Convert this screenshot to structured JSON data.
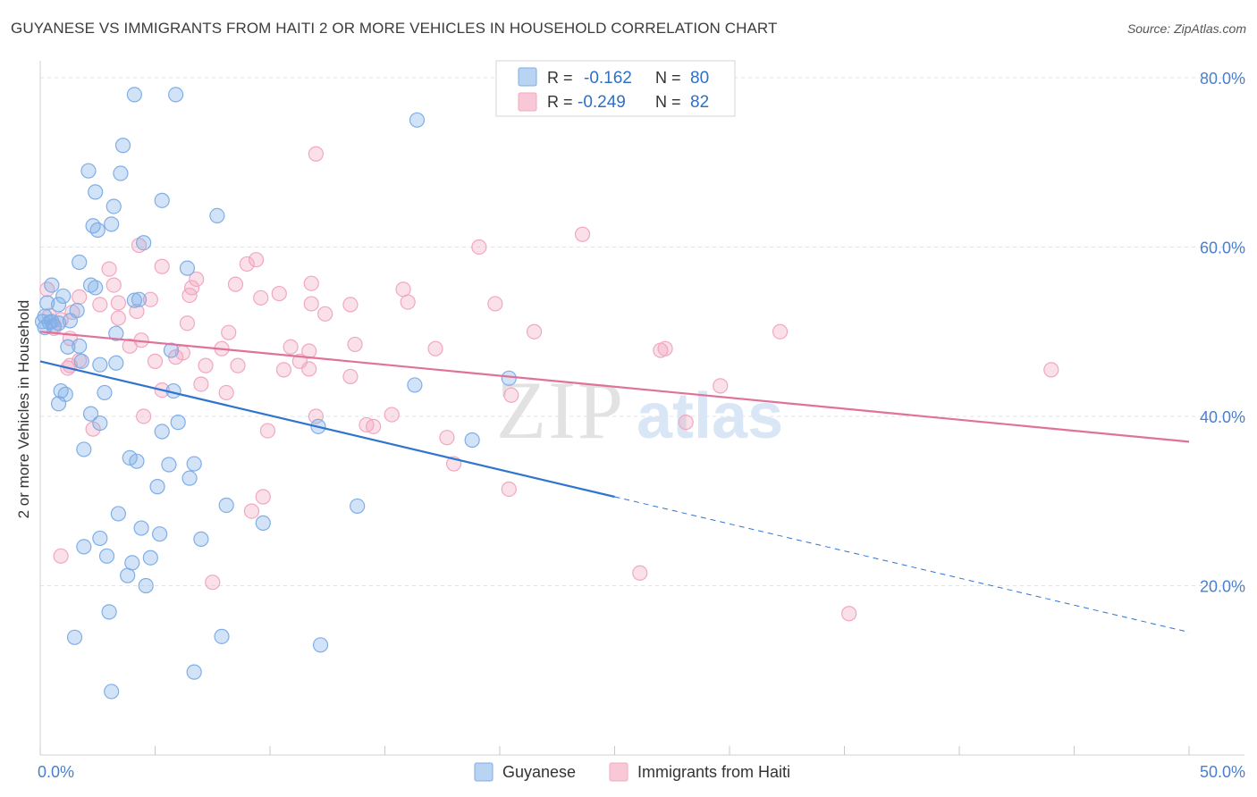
{
  "header": {
    "title": "GUYANESE VS IMMIGRANTS FROM HAITI 2 OR MORE VEHICLES IN HOUSEHOLD CORRELATION CHART",
    "source": "Source: ZipAtlas.com"
  },
  "watermark": {
    "zip": "ZIP",
    "atlas": "atlas"
  },
  "legend_top": [
    {
      "r_label": "R =",
      "r_value": "-0.162",
      "n_label": "N =",
      "n_value": "80"
    },
    {
      "r_label": "R =",
      "r_value": "-0.249",
      "n_label": "N =",
      "n_value": "82"
    }
  ],
  "chart_data": {
    "type": "scatter",
    "title": "GUYANESE VS IMMIGRANTS FROM HAITI 2 OR MORE VEHICLES IN HOUSEHOLD CORRELATION CHART",
    "xlabel": "",
    "ylabel": "2 or more Vehicles in Household",
    "xlim": [
      0,
      50
    ],
    "ylim": [
      0,
      82
    ],
    "x_tick_labels": [
      "0.0%",
      "50.0%"
    ],
    "y_ticks": [
      20,
      40,
      60,
      80
    ],
    "y_tick_labels": [
      "20.0%",
      "40.0%",
      "60.0%",
      "80.0%"
    ],
    "grid": true,
    "legend_position": "bottom-center",
    "colors": {
      "guyanese": "#7eaee8",
      "guyanese_line": "#2f74d0",
      "haiti": "#f2a7c0",
      "haiti_line": "#e0719a",
      "tick_label": "#4a7fd0"
    },
    "series": [
      {
        "name": "Guyanese",
        "trend": {
          "x0": 0,
          "y0": 46.5,
          "x1": 25,
          "y1": 30.5,
          "x_dash_end": 50,
          "y_dash_end": 14.5
        },
        "points": [
          [
            4.1,
            78.0
          ],
          [
            5.9,
            78.0
          ],
          [
            16.4,
            75.0
          ],
          [
            3.6,
            72.0
          ],
          [
            2.1,
            69.0
          ],
          [
            3.5,
            68.7
          ],
          [
            2.4,
            66.5
          ],
          [
            5.3,
            65.5
          ],
          [
            3.2,
            64.8
          ],
          [
            7.7,
            63.7
          ],
          [
            2.3,
            62.5
          ],
          [
            3.1,
            62.7
          ],
          [
            2.5,
            62.0
          ],
          [
            4.5,
            60.5
          ],
          [
            1.7,
            58.2
          ],
          [
            6.4,
            57.5
          ],
          [
            0.5,
            55.5
          ],
          [
            2.2,
            55.5
          ],
          [
            2.4,
            55.2
          ],
          [
            1.0,
            54.2
          ],
          [
            4.3,
            53.8
          ],
          [
            4.1,
            53.7
          ],
          [
            0.8,
            53.2
          ],
          [
            0.3,
            53.4
          ],
          [
            1.6,
            52.5
          ],
          [
            0.5,
            51.2
          ],
          [
            0.8,
            51.0
          ],
          [
            0.1,
            51.2
          ],
          [
            0.2,
            50.5
          ],
          [
            3.3,
            49.8
          ],
          [
            1.7,
            48.3
          ],
          [
            1.2,
            48.2
          ],
          [
            5.7,
            47.8
          ],
          [
            1.8,
            46.5
          ],
          [
            2.6,
            46.1
          ],
          [
            3.3,
            46.3
          ],
          [
            20.4,
            44.5
          ],
          [
            16.3,
            43.7
          ],
          [
            0.9,
            43.0
          ],
          [
            2.8,
            42.8
          ],
          [
            1.1,
            42.6
          ],
          [
            5.8,
            43.0
          ],
          [
            0.8,
            41.5
          ],
          [
            2.2,
            40.3
          ],
          [
            6.0,
            39.3
          ],
          [
            2.6,
            39.2
          ],
          [
            12.1,
            38.8
          ],
          [
            5.3,
            38.2
          ],
          [
            18.8,
            37.2
          ],
          [
            1.9,
            36.1
          ],
          [
            3.9,
            35.1
          ],
          [
            4.2,
            34.7
          ],
          [
            6.7,
            34.4
          ],
          [
            5.6,
            34.3
          ],
          [
            6.5,
            32.7
          ],
          [
            5.1,
            31.7
          ],
          [
            8.1,
            29.5
          ],
          [
            13.8,
            29.4
          ],
          [
            3.4,
            28.5
          ],
          [
            9.7,
            27.4
          ],
          [
            4.4,
            26.8
          ],
          [
            5.2,
            26.1
          ],
          [
            2.6,
            25.6
          ],
          [
            7.0,
            25.5
          ],
          [
            1.9,
            24.6
          ],
          [
            2.9,
            23.5
          ],
          [
            4.8,
            23.3
          ],
          [
            4.0,
            22.7
          ],
          [
            3.8,
            21.2
          ],
          [
            4.6,
            20.0
          ],
          [
            3.0,
            16.9
          ],
          [
            1.5,
            13.9
          ],
          [
            7.9,
            14.0
          ],
          [
            12.2,
            13.0
          ],
          [
            6.7,
            9.8
          ],
          [
            3.1,
            7.5
          ],
          [
            0.4,
            51.1
          ],
          [
            1.3,
            51.3
          ],
          [
            0.6,
            50.7
          ],
          [
            0.2,
            51.8
          ]
        ]
      },
      {
        "name": "Immigrants from Haiti",
        "trend": {
          "x0": 0,
          "y0": 50.0,
          "x1": 50,
          "y1": 37.0
        },
        "points": [
          [
            12.0,
            71.0
          ],
          [
            23.6,
            61.5
          ],
          [
            19.1,
            60.0
          ],
          [
            4.3,
            60.2
          ],
          [
            9.4,
            58.5
          ],
          [
            9.0,
            58.0
          ],
          [
            5.3,
            57.7
          ],
          [
            3.0,
            57.4
          ],
          [
            6.8,
            56.2
          ],
          [
            11.8,
            55.7
          ],
          [
            8.5,
            55.6
          ],
          [
            3.2,
            55.5
          ],
          [
            0.3,
            55.0
          ],
          [
            6.6,
            55.2
          ],
          [
            15.8,
            55.0
          ],
          [
            10.4,
            54.5
          ],
          [
            1.7,
            54.1
          ],
          [
            6.5,
            54.3
          ],
          [
            9.6,
            54.0
          ],
          [
            4.8,
            53.8
          ],
          [
            16.0,
            53.5
          ],
          [
            19.8,
            53.3
          ],
          [
            11.8,
            53.3
          ],
          [
            13.5,
            53.2
          ],
          [
            2.6,
            53.2
          ],
          [
            3.4,
            53.4
          ],
          [
            1.4,
            52.3
          ],
          [
            4.2,
            52.4
          ],
          [
            12.4,
            52.1
          ],
          [
            0.4,
            51.9
          ],
          [
            3.4,
            51.6
          ],
          [
            0.9,
            51.4
          ],
          [
            6.4,
            51.0
          ],
          [
            0.6,
            50.4
          ],
          [
            8.2,
            49.9
          ],
          [
            21.5,
            50.0
          ],
          [
            32.2,
            50.0
          ],
          [
            1.3,
            49.2
          ],
          [
            4.4,
            49.0
          ],
          [
            3.9,
            48.3
          ],
          [
            13.7,
            48.5
          ],
          [
            10.9,
            48.2
          ],
          [
            17.2,
            48.0
          ],
          [
            7.9,
            48.0
          ],
          [
            27.2,
            48.0
          ],
          [
            27.0,
            47.8
          ],
          [
            11.7,
            47.7
          ],
          [
            6.2,
            47.5
          ],
          [
            5.9,
            47.0
          ],
          [
            5.0,
            46.5
          ],
          [
            11.3,
            46.5
          ],
          [
            1.7,
            46.6
          ],
          [
            1.3,
            46.0
          ],
          [
            7.2,
            46.0
          ],
          [
            8.6,
            46.0
          ],
          [
            1.2,
            45.7
          ],
          [
            10.6,
            45.5
          ],
          [
            11.7,
            45.6
          ],
          [
            44.0,
            45.5
          ],
          [
            13.5,
            44.7
          ],
          [
            7.0,
            43.8
          ],
          [
            29.6,
            43.6
          ],
          [
            5.3,
            43.1
          ],
          [
            8.1,
            42.8
          ],
          [
            20.5,
            42.5
          ],
          [
            15.3,
            40.2
          ],
          [
            4.5,
            40.0
          ],
          [
            12.0,
            40.0
          ],
          [
            28.1,
            39.3
          ],
          [
            14.2,
            39.0
          ],
          [
            14.5,
            38.8
          ],
          [
            9.9,
            38.3
          ],
          [
            2.3,
            38.5
          ],
          [
            17.7,
            37.5
          ],
          [
            18.0,
            34.4
          ],
          [
            20.4,
            31.4
          ],
          [
            9.7,
            30.5
          ],
          [
            9.2,
            28.8
          ],
          [
            0.9,
            23.5
          ],
          [
            26.1,
            21.5
          ],
          [
            7.5,
            20.4
          ],
          [
            35.2,
            16.7
          ]
        ]
      }
    ]
  },
  "legend_bottom": [
    {
      "label": "Guyanese"
    },
    {
      "label": "Immigrants from Haiti"
    }
  ]
}
